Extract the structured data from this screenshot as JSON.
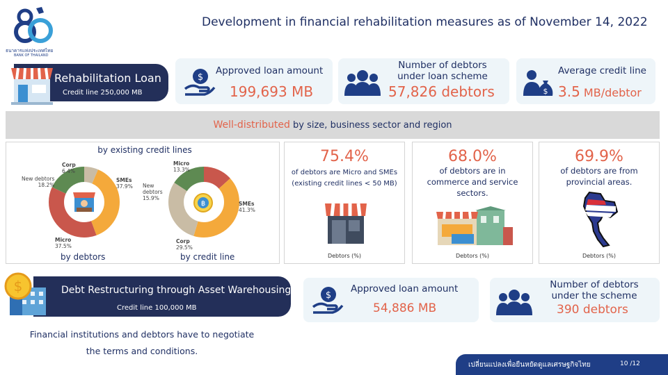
{
  "logo": {
    "number": "80",
    "org_th": "ธนาคารแห่งประเทศไทย",
    "org_en": "BANK OF THAILAND"
  },
  "title": "Development in financial  rehabilitation measures as of November 14, 2022",
  "rehab": {
    "label": "Rehabilitation Loan",
    "credit_line": "Credit line 250,000 MB"
  },
  "approved1": {
    "label": "Approved loan amount",
    "value": "199,693 MB"
  },
  "debtors1": {
    "label_line1": "Number of debtors",
    "label_line2": "under loan scheme",
    "value": "57,826 debtors"
  },
  "avg": {
    "label": "Average credit line",
    "value_num": "3.5",
    "value_unit": "MB/debtor"
  },
  "banner": {
    "highlight": "Well-distributed",
    "rest": " by size, business sector and region"
  },
  "charts_panel": {
    "heading": "by existing credit lines",
    "debtors_caption": "by debtors",
    "credit_caption": "by credit line"
  },
  "chart_data": [
    {
      "type": "pie",
      "title": "by debtors",
      "categories": [
        "Corp",
        "SMEs",
        "Micro",
        "New debtors"
      ],
      "values": [
        6.4,
        37.9,
        37.5,
        18.2
      ],
      "labels": [
        "6.4%",
        "37.9%",
        "37.5%",
        "18.2%"
      ],
      "colors": [
        "#c9bca5",
        "#f4a93b",
        "#c9574c",
        "#5e8a52"
      ]
    },
    {
      "type": "pie",
      "title": "by credit line",
      "categories": [
        "Micro",
        "SMEs",
        "Corp",
        "New debtors"
      ],
      "values": [
        13.3,
        41.3,
        29.5,
        15.9
      ],
      "labels": [
        "13.3%",
        "41.3%",
        "29.5%",
        "15.9%"
      ],
      "colors": [
        "#c9574c",
        "#f4a93b",
        "#c9bca5",
        "#5e8a52"
      ]
    }
  ],
  "stat1": {
    "pct": "75.4%",
    "line1": "of debtors  are Micro and SMEs",
    "line2": "(existing credit lines < 50 MB)",
    "foot": "Debtors (%)"
  },
  "stat2": {
    "pct": "68.0%",
    "line1": "of debtors are in",
    "line2": "commerce and service",
    "line3": "sectors.",
    "foot": "Debtors (%)"
  },
  "stat3": {
    "pct": "69.9%",
    "line1": "of debtors are from",
    "line2": "provincial areas.",
    "foot": "Debtors (%)"
  },
  "debt": {
    "label": "Debt Restructuring  through  Asset Warehousing",
    "credit_line": "Credit line 100,000 MB"
  },
  "approved2": {
    "label": "Approved loan amount",
    "value": "54,886 MB"
  },
  "debtors2": {
    "label_line1": "Number of debtors",
    "label_line2": "under the scheme",
    "value": "390 debtors"
  },
  "note": {
    "line1": "Financial institutions and debtors have to negotiate",
    "line2": "the terms and conditions."
  },
  "footer": {
    "slogan": "เปลี่ยนแปลงเพื่อยืนหยัดดูแลเศรษฐกิจไทย",
    "page": "10 /12"
  },
  "colors": {
    "navy": "#232f59",
    "salmon": "#e2634a",
    "card": "#eef5f9",
    "banner": "#d9d9d9",
    "footer": "#1f3e86"
  },
  "icons": [
    "shop-icon",
    "money-hand-icon",
    "people-icon",
    "money-bag-icon",
    "coin-building-icon",
    "thailand-map-icon"
  ]
}
